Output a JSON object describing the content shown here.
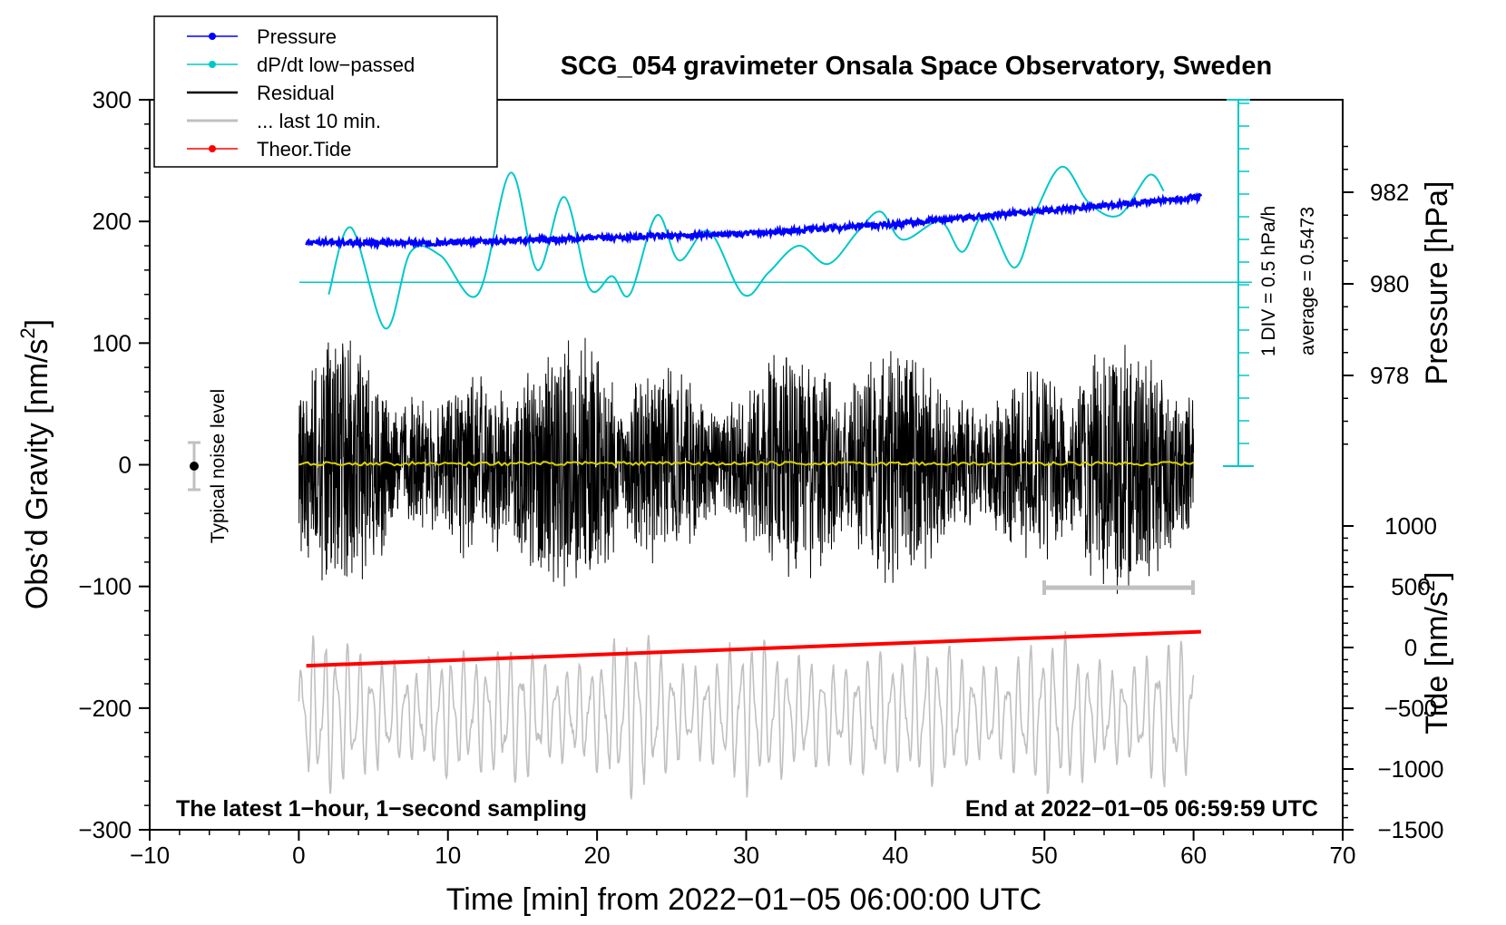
{
  "chart_data": {
    "type": "line",
    "title": "SCG_054 gravimeter Onsala Space Observatory, Sweden",
    "xlabel": "Time [min] from 2022−01−05 06:00:00 UTC",
    "ylabel_left": "Obs’d Gravity [nm/s",
    "ylabel_left_sup": "2",
    "ylabel_left_end": "]",
    "ylabel_right_top": "Pressure [hPa]",
    "ylabel_right_bottom": "Tide [nm/s",
    "ylabel_right_bottom_sup": "2",
    "ylabel_right_bottom_end": "]",
    "xlim": [
      -10,
      70
    ],
    "ylim": [
      -300,
      300
    ],
    "xticks": [
      "−10",
      "0",
      "10",
      "20",
      "30",
      "40",
      "50",
      "60",
      "70"
    ],
    "yticks_left": [
      "−300",
      "−200",
      "−100",
      "0",
      "100",
      "200",
      "300"
    ],
    "pressure_axis": {
      "ticks": [
        "978",
        "980",
        "982"
      ],
      "range_hpa": [
        976,
        983
      ]
    },
    "tide_axis": {
      "ticks": [
        "−1500",
        "−1000",
        "−500",
        "0",
        "500",
        "1000"
      ],
      "range": [
        -1500,
        1000
      ]
    },
    "dpdt_scale": {
      "label": "1 DIV = 0.5 hPa/h",
      "average": "average = 0.5473"
    },
    "noise_label": "Typical noise level",
    "annotation_left": "The latest 1−hour, 1−second sampling",
    "annotation_right": "End at 2022−01−05 06:59:59 UTC",
    "legend": [
      "Pressure",
      "dP/dt low−passed",
      "Residual",
      "... last 10 min.",
      "Theor.Tide"
    ],
    "series": [
      {
        "name": "Pressure",
        "color": "#0000ff",
        "x": [
          0.5,
          10,
          20,
          30,
          40,
          50,
          60.5
        ],
        "y_hpa": [
          980.9,
          980.9,
          981.0,
          981.1,
          981.3,
          981.6,
          981.9
        ]
      },
      {
        "name": "dP/dt low−passed",
        "color": "#00c8c8",
        "x": [
          2.0,
          3.5,
          5.8,
          7.5,
          9.5,
          12.0,
          14.2,
          16.0,
          17.8,
          19.5,
          21.0,
          22.2,
          24.0,
          25.5,
          27.5,
          29.8,
          31.5,
          33.5,
          35.5,
          37.5,
          39.0,
          40.5,
          43.0,
          44.5,
          46.0,
          48.0,
          49.5,
          51.2,
          53.0,
          55.0,
          57.0,
          58.0
        ],
        "y": [
          140,
          195,
          112,
          175,
          172,
          140,
          240,
          160,
          220,
          145,
          155,
          140,
          205,
          168,
          192,
          140,
          158,
          180,
          165,
          192,
          208,
          185,
          200,
          175,
          205,
          162,
          210,
          245,
          215,
          205,
          238,
          225
        ]
      },
      {
        "name": "Residual",
        "color": "#000000",
        "x_range": [
          0,
          60
        ],
        "y_range": [
          -130,
          135
        ]
      },
      {
        "name": "... last 10 min.",
        "color": "#c0c0c0",
        "x_range": [
          0,
          60
        ],
        "y_range": [
          -275,
          -130
        ]
      },
      {
        "name": "Theor.Tide",
        "color": "#ff0000",
        "x": [
          0.5,
          60.5
        ],
        "y_tide": [
          -150,
          130
        ]
      }
    ]
  },
  "colors": {
    "pressure": "#0000ff",
    "dpdt": "#00c8c8",
    "residual": "#000000",
    "last10": "#c0c0c0",
    "tide": "#ff0000",
    "mean": "#d8d000"
  }
}
